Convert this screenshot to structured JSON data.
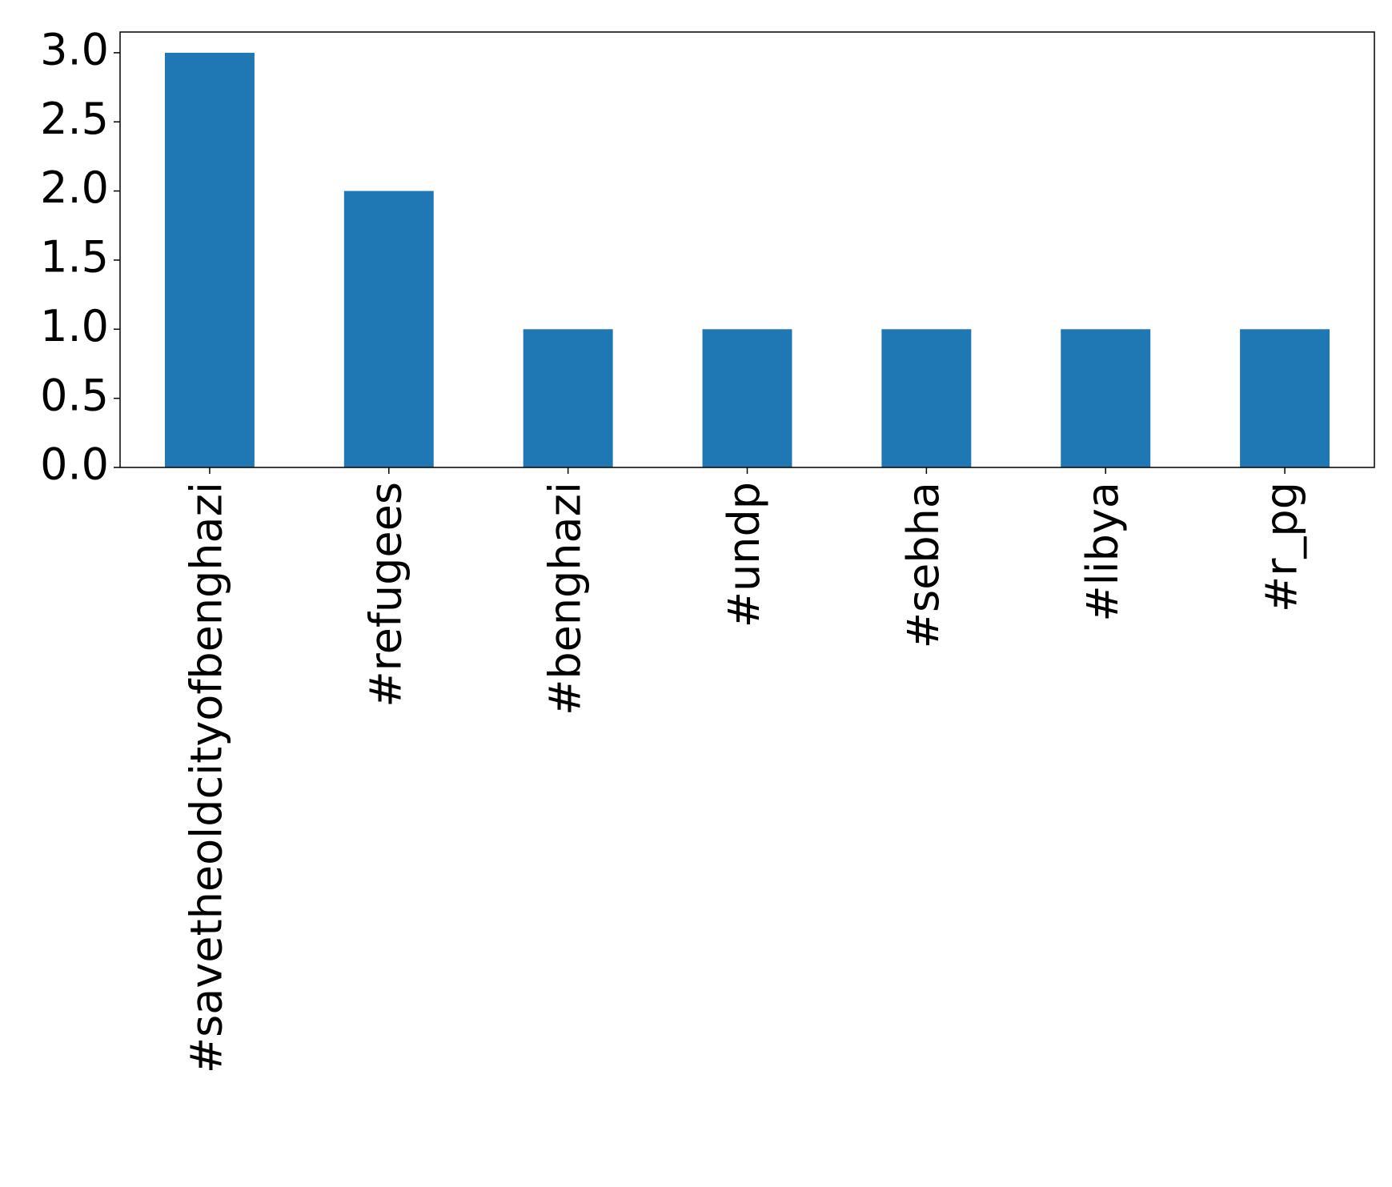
{
  "chart_data": {
    "type": "bar",
    "categories": [
      "#savetheoldcityofbenghazi",
      "#refugees",
      "#benghazi",
      "#undp",
      "#sebha",
      "#libya",
      "#r_pg"
    ],
    "values": [
      3,
      2,
      1,
      1,
      1,
      1,
      1
    ],
    "color": "#1f77b4",
    "ylim": [
      0,
      3.15
    ],
    "yticks": [
      {
        "value": 0,
        "label": "0.0"
      },
      0.5,
      {
        "value": 1,
        "label": "1.0"
      },
      1.5,
      {
        "value": 2,
        "label": "2.0"
      },
      2.5,
      {
        "value": 3,
        "label": "3.0"
      }
    ],
    "grid": false
  }
}
